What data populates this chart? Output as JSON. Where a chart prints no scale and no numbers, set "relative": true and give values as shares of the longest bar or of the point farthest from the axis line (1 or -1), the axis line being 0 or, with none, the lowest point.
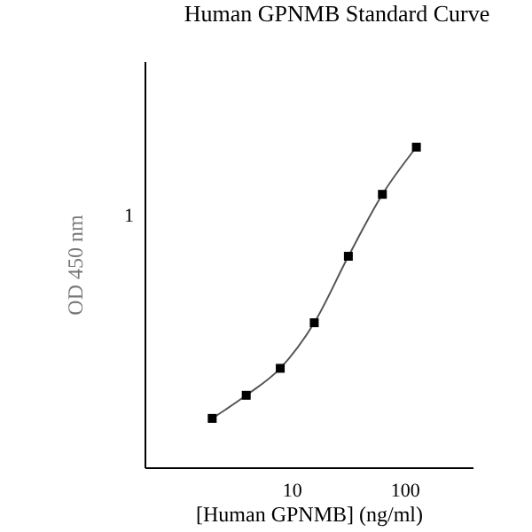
{
  "chart_data": {
    "type": "line",
    "title": "Human GPNMB Standard Curve",
    "xlabel": "[Human GPNMB] (ng/ml)",
    "ylabel": "OD 450 nm",
    "log": "x",
    "relative": true,
    "x": [
      1.95,
      3.9,
      7.8,
      15.6,
      31.25,
      62.5,
      125
    ],
    "series": [
      {
        "color": "#555555",
        "values": [
          0.155,
          0.227,
          0.311,
          0.453,
          0.66,
          0.853,
          1
        ]
      }
    ],
    "xlim": [
      0.5,
      400
    ],
    "xticks": [
      10,
      100
    ],
    "marker": "square",
    "line_style": "solid",
    "grid": false,
    "legend": false,
    "annotations": [
      "1"
    ]
  }
}
